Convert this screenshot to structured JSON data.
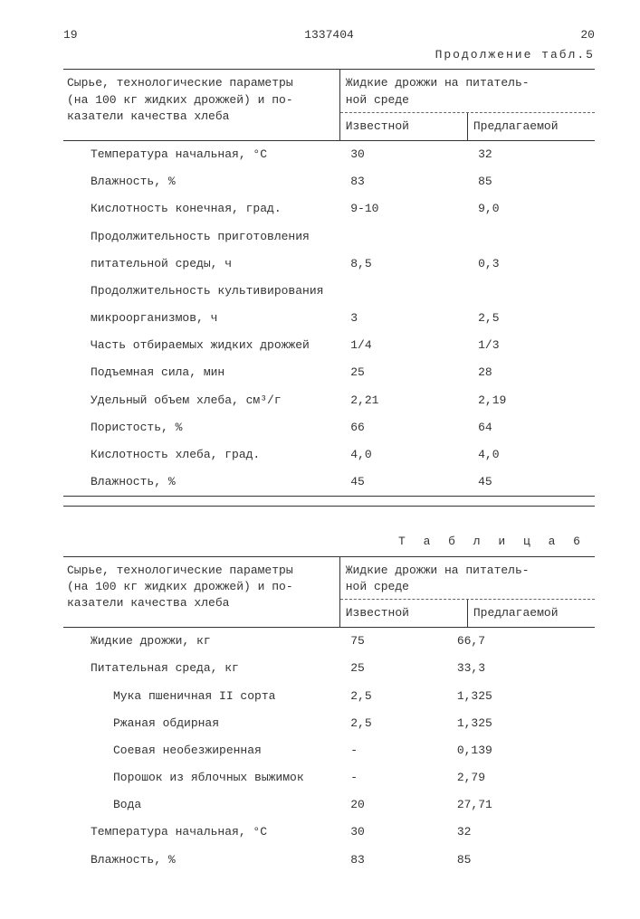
{
  "page_left": "19",
  "doc_number": "1337404",
  "page_right": "20",
  "table5": {
    "continuation": "Продолжение табл.5",
    "header_left_l1": "Сырье, технологические параметры",
    "header_left_l2": "(на 100 кг жидких дрожжей) и по-",
    "header_left_l3": "казатели качества хлеба",
    "header_group_l1": "Жидкие дрожжи на питатель-",
    "header_group_l2": "ной среде",
    "sub_known": "Известной",
    "sub_proposed": "Предлагаемой",
    "rows": [
      {
        "label": "Температура начальная, °С",
        "known": "30",
        "proposed": "32"
      },
      {
        "label": "Влажность, %",
        "known": "83",
        "proposed": "85"
      },
      {
        "label": "Кислотность конечная, град.",
        "known": "9-10",
        "proposed": "9,0"
      },
      {
        "label": "Продолжительность приготовления",
        "known": "",
        "proposed": ""
      },
      {
        "label": "питательной среды, ч",
        "known": "8,5",
        "proposed": "0,3"
      },
      {
        "label": "Продолжительность культивирования",
        "known": "",
        "proposed": ""
      },
      {
        "label": "микроорганизмов, ч",
        "known": "3",
        "proposed": "2,5"
      },
      {
        "label": "Часть отбираемых жидких дрожжей",
        "known": "1/4",
        "proposed": "1/3"
      },
      {
        "label": "Подъемная сила, мин",
        "known": "25",
        "proposed": "28"
      },
      {
        "label": "Удельный объем хлеба,  см³/г",
        "known": "2,21",
        "proposed": "2,19"
      },
      {
        "label": "Пористость, %",
        "known": "66",
        "proposed": "64"
      },
      {
        "label": "Кислотность хлеба, град.",
        "known": "4,0",
        "proposed": "4,0"
      },
      {
        "label": "Влажность, %",
        "known": "45",
        "proposed": "45"
      }
    ]
  },
  "table6": {
    "title": "Т а б л и ц а  6",
    "header_left_l1": "Сырье, технологические параметры",
    "header_left_l2": "(на 100 кг жидких дрожжей) и по-",
    "header_left_l3": "казатели качества хлеба",
    "header_group_l1": "Жидкие дрожжи на питатель-",
    "header_group_l2": "ной среде",
    "sub_known": "Известной",
    "sub_proposed": "Предлагаемой",
    "rows": [
      {
        "label": "Жидкие дрожжи, кг",
        "known": "75",
        "proposed": "66,7",
        "indent": false
      },
      {
        "label": "Питательная среда, кг",
        "known": "25",
        "proposed": "33,3",
        "indent": false
      },
      {
        "label": "Мука пшеничная II сорта",
        "known": "2,5",
        "proposed": "1,325",
        "indent": true
      },
      {
        "label": "Ржаная обдирная",
        "known": "2,5",
        "proposed": "1,325",
        "indent": true
      },
      {
        "label": "Соевая необезжиренная",
        "known": "-",
        "proposed": "0,139",
        "indent": true
      },
      {
        "label": "Порошок из яблочных выжимок",
        "known": "-",
        "proposed": "2,79",
        "indent": true
      },
      {
        "label": "Вода",
        "known": "20",
        "proposed": "27,71",
        "indent": true
      },
      {
        "label": "Температура начальная, °С",
        "known": "30",
        "proposed": "32",
        "indent": false
      },
      {
        "label": "Влажность, %",
        "known": "83",
        "proposed": "85",
        "indent": false
      }
    ]
  }
}
